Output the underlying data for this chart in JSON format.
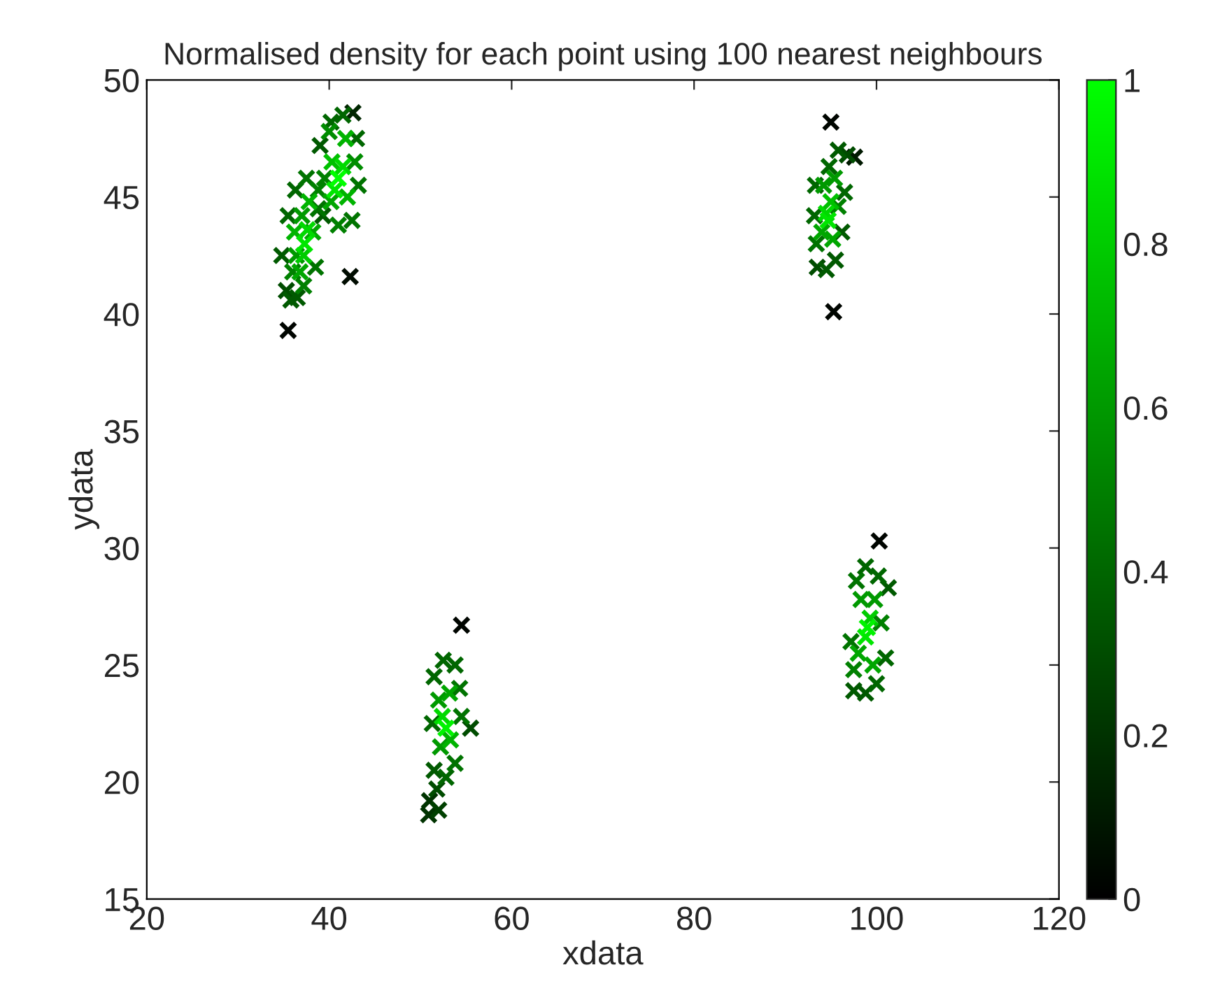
{
  "chart_data": {
    "type": "scatter",
    "title": "Normalised density for each point using 100 nearest neighbours",
    "xlabel": "xdata",
    "ylabel": "ydata",
    "xlim": [
      20,
      120
    ],
    "ylim": [
      15,
      50
    ],
    "xticks": [
      20,
      40,
      60,
      80,
      100,
      120
    ],
    "yticks": [
      15,
      20,
      25,
      30,
      35,
      40,
      45,
      50
    ],
    "clim": [
      0,
      1
    ],
    "cticks": [
      0,
      0.2,
      0.4,
      0.6,
      0.8,
      1
    ],
    "grid": false,
    "marker": "cross",
    "series": [
      {
        "x": [
          35.5,
          95,
          95.3,
          54.5,
          100.3
        ],
        "values": [
          39.3,
          48.2,
          40.1,
          26.7,
          30.3
        ],
        "cvalues": [
          0.02,
          0.02,
          0.02,
          0.02,
          0.02
        ]
      },
      {
        "x": [
          42.3
        ],
        "values": [
          41.6
        ],
        "cvalues": [
          0.05
        ]
      },
      {
        "x": [
          97.6
        ],
        "values": [
          46.7
        ],
        "cvalues": [
          0.1
        ]
      },
      {
        "x": [
          42.6
        ],
        "values": [
          48.6
        ],
        "cvalues": [
          0.15
        ]
      },
      {
        "x": [
          50.9,
          51
        ],
        "values": [
          18.6,
          19.2
        ],
        "cvalues": [
          0.2,
          0.2
        ]
      },
      {
        "x": [
          52
        ],
        "values": [
          18.8
        ],
        "cvalues": [
          0.25
        ]
      },
      {
        "x": [
          51.8,
          55.5,
          35.3,
          93.5,
          96.8
        ],
        "values": [
          19.7,
          22.3,
          41,
          42,
          46.8
        ],
        "cvalues": [
          0.3,
          0.3,
          0.3,
          0.3,
          0.3
        ]
      },
      {
        "x": [
          51.5,
          35.8,
          36.5,
          34.8,
          39.3,
          39,
          94.5,
          95.5,
          96.2,
          95.8,
          97.5,
          98.8,
          101.3
        ],
        "values": [
          20.5,
          40.6,
          40.7,
          42.5,
          44.2,
          47.2,
          41.9,
          42.3,
          43.5,
          47,
          23.9,
          23.8,
          28.3
        ],
        "cvalues": [
          0.35,
          0.35,
          0.35,
          0.35,
          0.35,
          0.35,
          0.35,
          0.35,
          0.35,
          0.35,
          0.35,
          0.35,
          0.35
        ]
      },
      {
        "x": [
          52.8,
          51.3,
          51.5,
          52.5,
          53.8,
          35.5,
          36.3,
          40.2,
          41.5,
          43,
          96.5,
          94.8,
          93.3,
          93.2,
          100,
          101,
          100.2,
          98.8
        ],
        "values": [
          20.2,
          22.5,
          24.5,
          25.2,
          25,
          44.2,
          45.3,
          48.2,
          48.5,
          47.5,
          45.2,
          46.3,
          45.5,
          44.2,
          24.2,
          25.3,
          28.8,
          29.2
        ],
        "cvalues": [
          0.4,
          0.4,
          0.4,
          0.4,
          0.4,
          0.4,
          0.4,
          0.4,
          0.4,
          0.4,
          0.4,
          0.4,
          0.4,
          0.4,
          0.4,
          0.4,
          0.4,
          0.4
        ]
      },
      {
        "x": [
          54.3,
          54.5,
          53.8,
          37.5,
          38.8,
          38.5,
          43.2,
          42.5,
          93.4,
          97.8,
          97.2
        ],
        "values": [
          24,
          22.8,
          20.8,
          45.8,
          44.5,
          42,
          45.5,
          44,
          43,
          28.6,
          26
        ],
        "cvalues": [
          0.45,
          0.45,
          0.45,
          0.45,
          0.45,
          0.45,
          0.45,
          0.45,
          0.45,
          0.45,
          0.45
        ]
      },
      {
        "x": [
          37.2,
          36,
          38.8,
          41,
          39.5,
          95.8,
          97.5,
          100.5
        ],
        "values": [
          41.2,
          41.8,
          45.3,
          43.8,
          45.8,
          44.6,
          24.8,
          26.8
        ],
        "cvalues": [
          0.5,
          0.5,
          0.5,
          0.5,
          0.5,
          0.5,
          0.5,
          0.5
        ]
      },
      {
        "x": [
          42.8,
          40
        ],
        "values": [
          46.5,
          47.8
        ],
        "cvalues": [
          0.55,
          0.55
        ]
      },
      {
        "x": [
          36.4,
          37,
          94.2,
          95.4,
          52,
          52.2,
          98.3,
          99.8
        ],
        "values": [
          42.5,
          44.2,
          45.5,
          45.8,
          23.5,
          21.5,
          27.8,
          27.8
        ],
        "cvalues": [
          0.6,
          0.6,
          0.6,
          0.6,
          0.6,
          0.6,
          0.6,
          0.6
        ]
      },
      {
        "x": [
          38.2,
          36.8,
          40.2,
          94,
          95.2,
          53.2,
          98,
          99.6
        ],
        "values": [
          43.5,
          41.8,
          44.8,
          43.5,
          43.2,
          23.8,
          25.5,
          25
        ],
        "cvalues": [
          0.65,
          0.65,
          0.65,
          0.65,
          0.65,
          0.65,
          0.65,
          0.65
        ]
      },
      {
        "x": [
          37.8,
          36.2,
          41.8,
          42,
          53.3
        ],
        "values": [
          44.8,
          43.5,
          47.5,
          45,
          21.8
        ],
        "cvalues": [
          0.7,
          0.7,
          0.7,
          0.7,
          0.7
        ]
      },
      {
        "x": [
          40.3,
          95
        ],
        "values": [
          46.5,
          44.8
        ],
        "cvalues": [
          0.75,
          0.75
        ]
      },
      {
        "x": [
          37.2,
          99.3
        ],
        "values": [
          42.5,
          27
        ],
        "cvalues": [
          0.8,
          0.8
        ]
      },
      {
        "x": [
          37.6,
          41.5,
          94.5,
          52.4
        ],
        "values": [
          43.6,
          46.3,
          44.3,
          22.8
        ],
        "cvalues": [
          0.85,
          0.85,
          0.85,
          0.85
        ]
      },
      {
        "x": [
          37.3,
          40.6,
          94.7,
          98.8
        ],
        "values": [
          43,
          45.3,
          44,
          26.2
        ],
        "cvalues": [
          0.9,
          0.9,
          0.9,
          0.9
        ]
      },
      {
        "x": [
          52.8,
          99
        ],
        "values": [
          22.3,
          26.6
        ],
        "cvalues": [
          0.95,
          0.95
        ]
      },
      {
        "x": [
          41
        ],
        "values": [
          45.8
        ],
        "cvalues": [
          1.0
        ]
      }
    ]
  }
}
